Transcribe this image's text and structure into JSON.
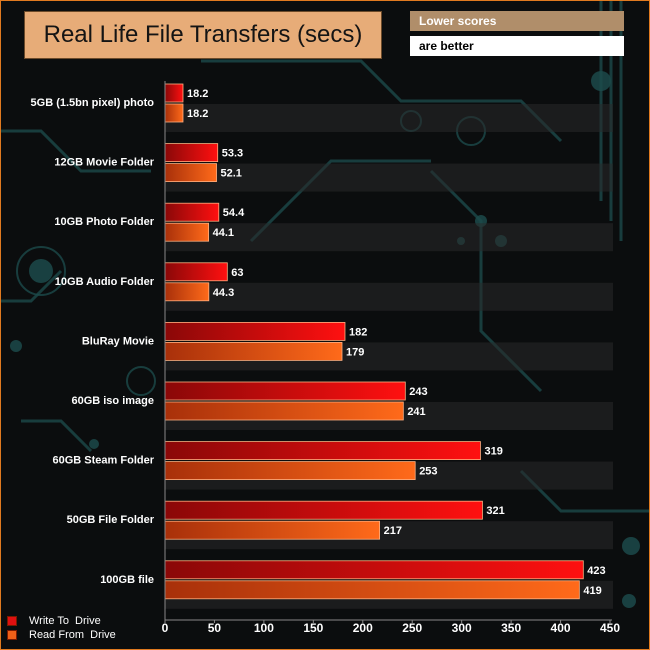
{
  "title": "Real Life File Transfers (secs)",
  "note_line1": "Lower scores",
  "note_line2": "are better",
  "colors": {
    "write": "#e01010",
    "read": "#f06018",
    "frame": "#e07a20",
    "title_bg": "#e7ac78"
  },
  "chart_data": {
    "type": "bar",
    "orientation": "horizontal",
    "categories": [
      "5GB (1.5bn pixel) photo",
      "12GB Movie Folder",
      "10GB Photo Folder",
      "10GB Audio Folder",
      "BluRay Movie",
      "60GB iso image",
      "60GB Steam Folder",
      "50GB File Folder",
      "100GB file"
    ],
    "series": [
      {
        "name": "Write To  Drive",
        "values": [
          18.2,
          53.3,
          54.4,
          63,
          182,
          243,
          319,
          321,
          423
        ],
        "labels": [
          "18.2",
          "53.3",
          "54.4",
          "63",
          "182",
          "243",
          "319",
          "321",
          "423"
        ]
      },
      {
        "name": "Read From  Drive",
        "values": [
          18.2,
          52.1,
          44.1,
          44.3,
          179,
          241,
          253,
          217,
          419
        ],
        "labels": [
          "18.2",
          "52.1",
          "44.1",
          "44.3",
          "179",
          "241",
          "253",
          "217",
          "419"
        ]
      }
    ],
    "xlim": [
      0,
      450
    ],
    "xticks": [
      "0",
      "50",
      "100",
      "150",
      "200",
      "250",
      "300",
      "350",
      "400",
      "450"
    ],
    "legend": "bottom-left",
    "grid": false
  }
}
